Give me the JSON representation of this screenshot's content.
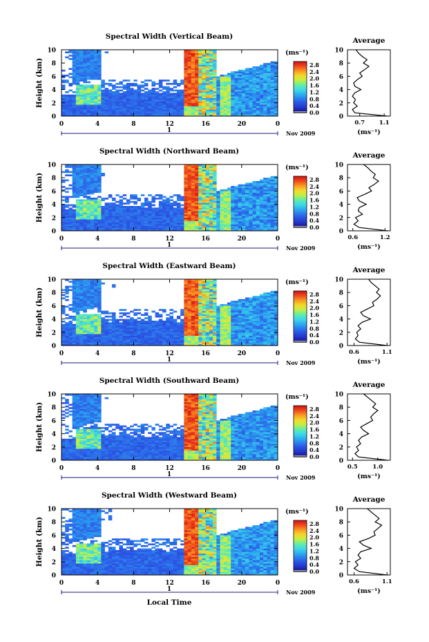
{
  "chart_data": [
    {
      "type": "heatmap",
      "title": "Spectral Width (Vertical Beam)",
      "ylabel": "Height (km)",
      "x_ticks": [
        "0",
        "4",
        "8",
        "12",
        "16",
        "20",
        "0"
      ],
      "y_ticks": [
        "0",
        "2",
        "4",
        "6",
        "8",
        "10"
      ],
      "xlim": [
        0,
        24
      ],
      "ylim": [
        0,
        10
      ],
      "day_label": "1",
      "month_label": "Nov 2009",
      "colorbar": {
        "unit": "(ms⁻¹)",
        "ticks": [
          "0.0",
          "0.4",
          "0.8",
          "1.2",
          "1.6",
          "2.0",
          "2.4",
          "2.8"
        ],
        "range": [
          0,
          3.0
        ]
      },
      "profile": {
        "title": "Average",
        "xlabel": "(ms⁻¹)",
        "x_ticks": [
          "0.7",
          "1.1"
        ],
        "xlim": [
          0.5,
          1.2
        ],
        "heights": [
          0,
          0.5,
          1,
          1.5,
          2,
          2.5,
          3,
          3.5,
          4,
          4.5,
          5,
          5.5,
          6,
          6.5,
          7,
          7.5,
          8,
          8.5,
          9,
          9.5,
          10
        ],
        "values": [
          1.15,
          0.62,
          0.58,
          0.66,
          0.6,
          0.63,
          0.58,
          0.62,
          0.72,
          0.62,
          0.6,
          0.66,
          0.74,
          0.7,
          0.78,
          0.85,
          0.76,
          0.82,
          0.74,
          0.68,
          0.64
        ]
      }
    },
    {
      "type": "heatmap",
      "title": "Spectral Width (Northward Beam)",
      "ylabel": "Height (km)",
      "x_ticks": [
        "0",
        "4",
        "8",
        "12",
        "16",
        "20",
        "0"
      ],
      "y_ticks": [
        "0",
        "2",
        "4",
        "6",
        "8",
        "10"
      ],
      "xlim": [
        0,
        24
      ],
      "ylim": [
        0,
        10
      ],
      "day_label": "1",
      "month_label": "Nov 2009",
      "colorbar": {
        "unit": "(ms⁻¹)",
        "ticks": [
          "0.0",
          "0.4",
          "0.8",
          "1.2",
          "1.6",
          "2.0",
          "2.4",
          "2.8"
        ],
        "range": [
          0,
          3.0
        ]
      },
      "profile": {
        "title": "Average",
        "xlabel": "(ms⁻¹)",
        "x_ticks": [
          "0.6",
          "1.2"
        ],
        "xlim": [
          0.5,
          1.3
        ],
        "heights": [
          0,
          0.5,
          1,
          1.5,
          2,
          2.5,
          3,
          3.5,
          4,
          4.5,
          5,
          5.5,
          6,
          6.5,
          7,
          7.5,
          8,
          8.5,
          9,
          9.5,
          10
        ],
        "values": [
          1.25,
          0.72,
          0.62,
          0.7,
          0.65,
          0.78,
          0.7,
          0.72,
          0.85,
          0.72,
          0.68,
          0.82,
          0.95,
          0.9,
          1.0,
          1.08,
          0.98,
          1.02,
          0.94,
          0.88,
          0.8
        ]
      }
    },
    {
      "type": "heatmap",
      "title": "Spectral Width (Eastward Beam)",
      "ylabel": "Height (km)",
      "x_ticks": [
        "0",
        "4",
        "8",
        "12",
        "16",
        "20",
        "0"
      ],
      "y_ticks": [
        "0",
        "2",
        "4",
        "6",
        "8",
        "10"
      ],
      "xlim": [
        0,
        24
      ],
      "ylim": [
        0,
        10
      ],
      "day_label": "1",
      "month_label": "Nov 2009",
      "colorbar": {
        "unit": "(ms⁻¹)",
        "ticks": [
          "0.0",
          "0.4",
          "0.8",
          "1.2",
          "1.6",
          "2.0",
          "2.4",
          "2.8"
        ],
        "range": [
          0,
          3.0
        ]
      },
      "profile": {
        "title": "Average",
        "xlabel": "(ms⁻¹)",
        "x_ticks": [
          "0.6",
          "1.1"
        ],
        "xlim": [
          0.5,
          1.15
        ],
        "heights": [
          0,
          0.5,
          1,
          1.5,
          2,
          2.5,
          3,
          3.5,
          4,
          4.5,
          5,
          5.5,
          6,
          6.5,
          7,
          7.5,
          8,
          8.5,
          9,
          9.5,
          10
        ],
        "values": [
          1.1,
          0.68,
          0.62,
          0.66,
          0.64,
          0.7,
          0.66,
          0.72,
          0.85,
          0.74,
          0.7,
          0.8,
          0.9,
          0.88,
          0.95,
          1.0,
          0.94,
          0.98,
          0.92,
          0.86,
          0.82
        ]
      }
    },
    {
      "type": "heatmap",
      "title": "Spectral Width (Southward Beam)",
      "ylabel": "Height (km)",
      "x_ticks": [
        "0",
        "4",
        "8",
        "12",
        "16",
        "20",
        "0"
      ],
      "y_ticks": [
        "0",
        "2",
        "4",
        "6",
        "8",
        "10"
      ],
      "xlim": [
        0,
        24
      ],
      "ylim": [
        0,
        10
      ],
      "day_label": "1",
      "month_label": "Nov 2009",
      "colorbar": {
        "unit": "(ms⁻¹)",
        "ticks": [
          "0.0",
          "0.4",
          "0.8",
          "1.2",
          "1.6",
          "2.0",
          "2.4",
          "2.8"
        ],
        "range": [
          0,
          3.0
        ]
      },
      "profile": {
        "title": "Average",
        "xlabel": "(ms⁻¹)",
        "x_ticks": [
          "0.5",
          "1.0"
        ],
        "xlim": [
          0.4,
          1.25
        ],
        "heights": [
          0,
          0.5,
          1,
          1.5,
          2,
          2.5,
          3,
          3.5,
          4,
          4.5,
          5,
          5.5,
          6,
          6.5,
          7,
          7.5,
          8,
          8.5,
          9,
          9.5,
          10
        ],
        "values": [
          1.2,
          0.62,
          0.55,
          0.62,
          0.58,
          0.66,
          0.62,
          0.68,
          0.82,
          0.72,
          0.66,
          0.78,
          0.9,
          0.86,
          0.92,
          1.0,
          0.9,
          0.96,
          0.88,
          0.8,
          0.72
        ]
      }
    },
    {
      "type": "heatmap",
      "title": "Spectral Width (Westward Beam)",
      "ylabel": "Height (km)",
      "xlabel": "Local Time",
      "x_ticks": [
        "0",
        "4",
        "8",
        "12",
        "16",
        "20",
        "0"
      ],
      "y_ticks": [
        "0",
        "2",
        "4",
        "6",
        "8",
        "10"
      ],
      "xlim": [
        0,
        24
      ],
      "ylim": [
        0,
        10
      ],
      "day_label": "1",
      "month_label": "Nov 2009",
      "colorbar": {
        "unit": "(ms⁻¹)",
        "ticks": [
          "0.0",
          "0.4",
          "0.8",
          "1.2",
          "1.6",
          "2.0",
          "2.4",
          "2.8"
        ],
        "range": [
          0,
          3.0
        ]
      },
      "profile": {
        "title": "Average",
        "xlabel": "(ms⁻¹)",
        "x_ticks": [
          "0.6",
          "1.1"
        ],
        "xlim": [
          0.5,
          1.15
        ],
        "heights": [
          0,
          0.5,
          1,
          1.5,
          2,
          2.5,
          3,
          3.5,
          4,
          4.5,
          5,
          5.5,
          6,
          6.5,
          7,
          7.5,
          8,
          8.5,
          9,
          9.5,
          10
        ],
        "values": [
          1.1,
          0.68,
          0.6,
          0.66,
          0.62,
          0.7,
          0.66,
          0.7,
          0.86,
          0.74,
          0.68,
          0.82,
          0.92,
          0.9,
          0.96,
          1.02,
          0.92,
          0.98,
          0.92,
          0.86,
          0.8
        ]
      }
    }
  ]
}
